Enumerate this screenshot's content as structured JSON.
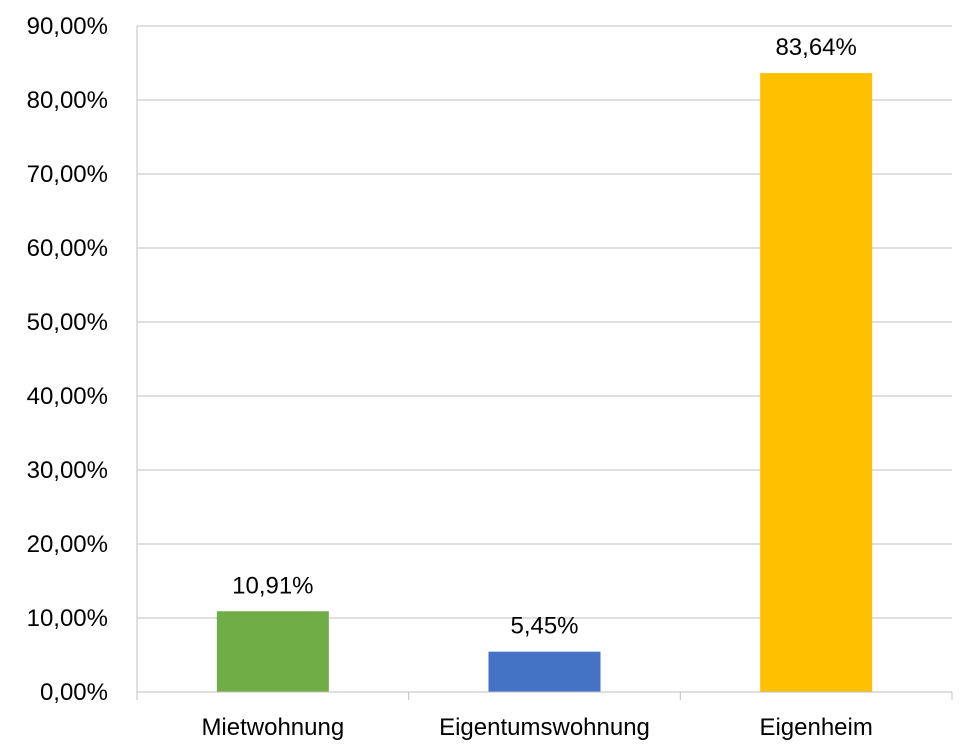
{
  "chart_data": {
    "type": "bar",
    "categories": [
      "Mietwohnung",
      "Eigentumswohnung",
      "Eigenheim"
    ],
    "values": [
      10.91,
      5.45,
      83.64
    ],
    "data_labels": [
      "10,91%",
      "5,45%",
      "83,64%"
    ],
    "bar_colors": [
      "#70ad47",
      "#4472c4",
      "#ffc000"
    ],
    "ylim": [
      0,
      90
    ],
    "yticks": [
      0,
      10,
      20,
      30,
      40,
      50,
      60,
      70,
      80,
      90
    ],
    "ytick_labels": [
      "0,00%",
      "10,00%",
      "20,00%",
      "30,00%",
      "40,00%",
      "50,00%",
      "60,00%",
      "70,00%",
      "80,00%",
      "90,00%"
    ],
    "grid": true,
    "legend": "none",
    "title": "",
    "xlabel": "",
    "ylabel": ""
  }
}
